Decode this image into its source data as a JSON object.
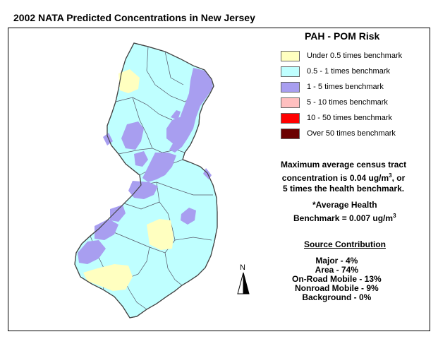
{
  "title": "2002 NATA Predicted Concentrations in New Jersey",
  "legend": {
    "title": "PAH - POM Risk",
    "items": [
      {
        "label": "Under 0.5 times benchmark",
        "color": "#ffffc0"
      },
      {
        "label": "0.5 - 1 times benchmark",
        "color": "#bfffff"
      },
      {
        "label": "1 - 5 times benchmark",
        "color": "#a89ef0"
      },
      {
        "label": "5 - 10 times benchmark",
        "color": "#ffbfbf"
      },
      {
        "label": "10 - 50 times benchmark",
        "color": "#ff0000"
      },
      {
        "label": "Over 50 times benchmark",
        "color": "#6b0000"
      }
    ]
  },
  "max_info": {
    "line1": "Maximum average census tract",
    "line2_pre": "concentration is 0.04 ug/m",
    "line2_sup": "3",
    "line2_post": ", or",
    "line3": "5 times the health benchmark."
  },
  "benchmark": {
    "line1": "*Average Health",
    "line2_pre": "Benchmark = 0.007 ug/m",
    "line2_sup": "3"
  },
  "source": {
    "title": "Source Contribution",
    "items": [
      "Major - 4%",
      "Area - 74%",
      "On-Road Mobile - 13%",
      "Nonroad Mobile - 9%",
      "Background - 0%"
    ]
  },
  "north_label": "N"
}
